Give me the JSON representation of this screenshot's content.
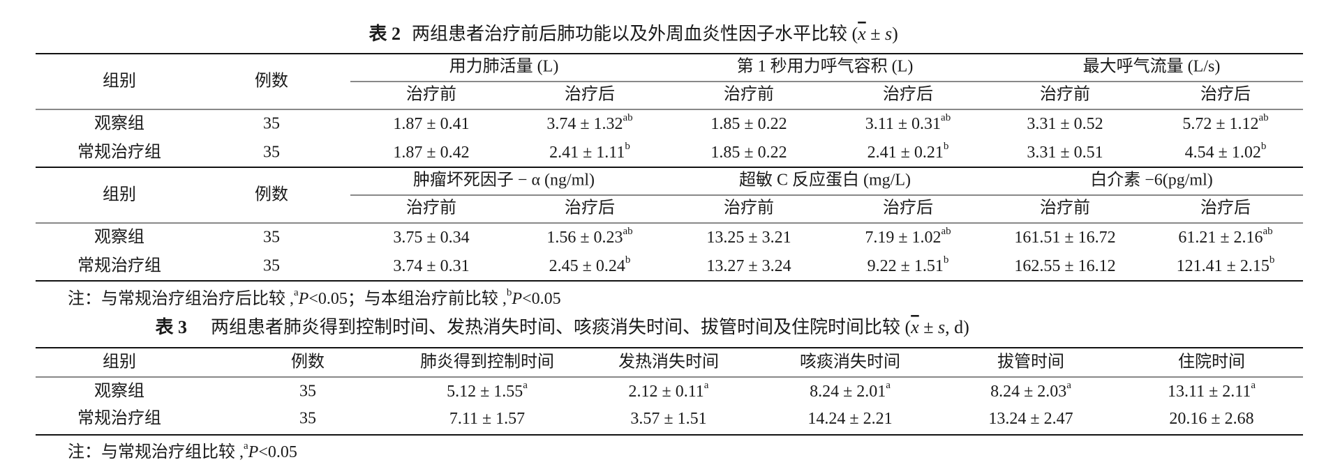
{
  "table2": {
    "label": "表 2",
    "title": [
      {
        "t": "两组患者治疗前后肺功能以及外周血炎性因子水平比较 ("
      },
      {
        "bar": "x"
      },
      {
        "t": " ± "
      },
      {
        "i": "s"
      },
      {
        "t": ")"
      }
    ],
    "corner": [
      "组别",
      "例数"
    ],
    "blocks": [
      {
        "groups": [
          "用力肺活量 (L)",
          "第 1 秒用力呼气容积 (L)",
          "最大呼气流量 (L/s)"
        ],
        "subheaders": [
          "治疗前",
          "治疗后",
          "治疗前",
          "治疗后",
          "治疗前",
          "治疗后"
        ],
        "rows": [
          {
            "group": "观察组",
            "n": "35",
            "cells": [
              {
                "text": "1.87 ± 0.41"
              },
              {
                "text": "3.74 ± 1.32",
                "sup": "ab"
              },
              {
                "text": "1.85 ± 0.22"
              },
              {
                "text": "3.11 ± 0.31",
                "sup": "ab"
              },
              {
                "text": "3.31 ± 0.52"
              },
              {
                "text": "5.72 ± 1.12",
                "sup": "ab"
              }
            ]
          },
          {
            "group": "常规治疗组",
            "n": "35",
            "cells": [
              {
                "text": "1.87 ± 0.42"
              },
              {
                "text": "2.41 ± 1.11",
                "sup": "b"
              },
              {
                "text": "1.85 ± 0.22"
              },
              {
                "text": "2.41 ± 0.21",
                "sup": "b"
              },
              {
                "text": "3.31 ± 0.51"
              },
              {
                "text": "4.54 ± 1.02",
                "sup": "b"
              }
            ]
          }
        ]
      },
      {
        "groups": [
          "肿瘤坏死因子 − α (ng/ml)",
          "超敏 C 反应蛋白 (mg/L)",
          "白介素 −6(pg/ml)"
        ],
        "subheaders": [
          "治疗前",
          "治疗后",
          "治疗前",
          "治疗后",
          "治疗前",
          "治疗后"
        ],
        "rows": [
          {
            "group": "观察组",
            "n": "35",
            "cells": [
              {
                "text": "3.75 ± 0.34"
              },
              {
                "text": "1.56 ± 0.23",
                "sup": "ab"
              },
              {
                "text": "13.25 ± 3.21"
              },
              {
                "text": "7.19 ± 1.02",
                "sup": "ab"
              },
              {
                "text": "161.51 ± 16.72"
              },
              {
                "text": "61.21 ± 2.16",
                "sup": "ab"
              }
            ]
          },
          {
            "group": "常规治疗组",
            "n": "35",
            "cells": [
              {
                "text": "3.74 ± 0.31"
              },
              {
                "text": "2.45 ± 0.24",
                "sup": "b"
              },
              {
                "text": "13.27 ± 3.24"
              },
              {
                "text": "9.22 ± 1.51",
                "sup": "b"
              },
              {
                "text": "162.55 ± 16.12"
              },
              {
                "text": "121.41 ± 2.15",
                "sup": "b"
              }
            ]
          }
        ]
      }
    ],
    "note": [
      {
        "t": "注：与常规治疗组治疗后比较 ,"
      },
      {
        "sup": "a"
      },
      {
        "i": "P"
      },
      {
        "t": "<0.05；与本组治疗前比较 ,"
      },
      {
        "sup": "b"
      },
      {
        "i": "P"
      },
      {
        "t": "<0.05"
      }
    ]
  },
  "table3": {
    "label": "表 3",
    "title": [
      {
        "t": "两组患者肺炎得到控制时间、发热消失时间、咳痰消失时间、拔管时间及住院时间比较 ("
      },
      {
        "bar": "x"
      },
      {
        "t": " ± "
      },
      {
        "i": "s"
      },
      {
        "t": ", d)"
      }
    ],
    "headers": [
      "组别",
      "例数",
      "肺炎得到控制时间",
      "发热消失时间",
      "咳痰消失时间",
      "拔管时间",
      "住院时间"
    ],
    "rows": [
      {
        "group": "观察组",
        "n": "35",
        "cells": [
          {
            "text": "5.12 ± 1.55",
            "sup": "a"
          },
          {
            "text": "2.12 ± 0.11",
            "sup": "a"
          },
          {
            "text": "8.24 ± 2.01",
            "sup": "a"
          },
          {
            "text": "8.24 ± 2.03",
            "sup": "a"
          },
          {
            "text": "13.11 ± 2.11",
            "sup": "a"
          }
        ]
      },
      {
        "group": "常规治疗组",
        "n": "35",
        "cells": [
          {
            "text": "7.11 ± 1.57"
          },
          {
            "text": "3.57 ± 1.51"
          },
          {
            "text": "14.24 ± 2.21"
          },
          {
            "text": "13.24 ± 2.47"
          },
          {
            "text": "20.16 ± 2.68"
          }
        ]
      }
    ],
    "note": [
      {
        "t": "注：与常规治疗组比较 ,"
      },
      {
        "sup": "a"
      },
      {
        "i": "P"
      },
      {
        "t": "<0.05"
      }
    ]
  }
}
